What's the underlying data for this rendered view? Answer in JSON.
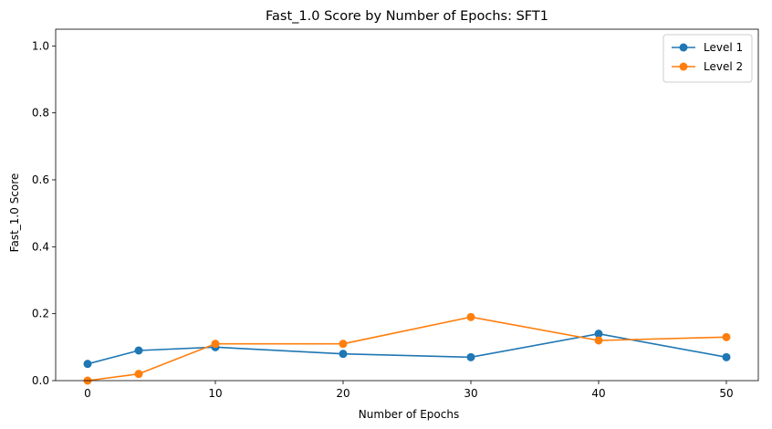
{
  "chart_data": {
    "type": "line",
    "title": "Fast_1.0 Score by Number of Epochs: SFT1",
    "xlabel": "Number of Epochs",
    "ylabel": "Fast_1.0 Score",
    "xlim": [
      -2.5,
      52.5
    ],
    "ylim": [
      0,
      1.05
    ],
    "xticks": [
      0,
      10,
      20,
      30,
      40,
      50
    ],
    "yticks": [
      0.0,
      0.2,
      0.4,
      0.6,
      0.8,
      1.0
    ],
    "xtick_labels": [
      "0",
      "10",
      "20",
      "30",
      "40",
      "50"
    ],
    "ytick_labels": [
      "0.0",
      "0.2",
      "0.4",
      "0.6",
      "0.8",
      "1.0"
    ],
    "grid": false,
    "legend_position": "top-right",
    "x": [
      0,
      4,
      10,
      20,
      30,
      40,
      50
    ],
    "series": [
      {
        "name": "Level 1",
        "color": "#1f77b4",
        "values": [
          0.05,
          0.09,
          0.1,
          0.08,
          0.07,
          0.14,
          0.07
        ]
      },
      {
        "name": "Level 2",
        "color": "#ff7f0e",
        "values": [
          0.0,
          0.02,
          0.11,
          0.11,
          0.19,
          0.12,
          0.13
        ]
      }
    ]
  }
}
